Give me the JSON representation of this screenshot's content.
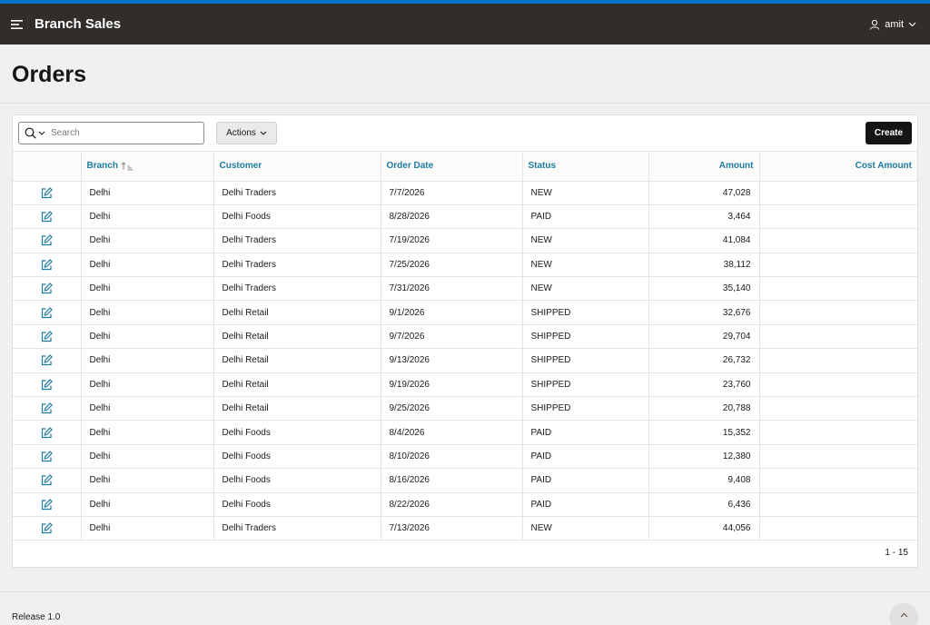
{
  "header": {
    "app_title": "Branch Sales",
    "user_name": "amit",
    "accent_color": "#0572ce",
    "bar_color": "#312d2a"
  },
  "page": {
    "title": "Orders"
  },
  "toolbar": {
    "search_placeholder": "Search",
    "actions_label": "Actions",
    "create_label": "Create"
  },
  "table": {
    "columns": [
      "Branch",
      "Customer",
      "Order Date",
      "Status",
      "Amount",
      "Cost Amount"
    ],
    "rows": [
      [
        "Delhi",
        "Delhi Traders",
        "7/7/2026",
        "NEW",
        "47,028",
        ""
      ],
      [
        "Delhi",
        "Delhi Foods",
        "8/28/2026",
        "PAID",
        "3,464",
        ""
      ],
      [
        "Delhi",
        "Delhi Traders",
        "7/19/2026",
        "NEW",
        "41,084",
        ""
      ],
      [
        "Delhi",
        "Delhi Traders",
        "7/25/2026",
        "NEW",
        "38,112",
        ""
      ],
      [
        "Delhi",
        "Delhi Traders",
        "7/31/2026",
        "NEW",
        "35,140",
        ""
      ],
      [
        "Delhi",
        "Delhi Retail",
        "9/1/2026",
        "SHIPPED",
        "32,676",
        ""
      ],
      [
        "Delhi",
        "Delhi Retail",
        "9/7/2026",
        "SHIPPED",
        "29,704",
        ""
      ],
      [
        "Delhi",
        "Delhi Retail",
        "9/13/2026",
        "SHIPPED",
        "26,732",
        ""
      ],
      [
        "Delhi",
        "Delhi Retail",
        "9/19/2026",
        "SHIPPED",
        "23,760",
        ""
      ],
      [
        "Delhi",
        "Delhi Retail",
        "9/25/2026",
        "SHIPPED",
        "20,788",
        ""
      ],
      [
        "Delhi",
        "Delhi Foods",
        "8/4/2026",
        "PAID",
        "15,352",
        ""
      ],
      [
        "Delhi",
        "Delhi Foods",
        "8/10/2026",
        "PAID",
        "12,380",
        ""
      ],
      [
        "Delhi",
        "Delhi Foods",
        "8/16/2026",
        "PAID",
        "9,408",
        ""
      ],
      [
        "Delhi",
        "Delhi Foods",
        "8/22/2026",
        "PAID",
        "6,436",
        ""
      ],
      [
        "Delhi",
        "Delhi Traders",
        "7/13/2026",
        "NEW",
        "44,056",
        ""
      ]
    ],
    "pagination": "1 - 15"
  },
  "footer": {
    "release": "Release 1.0"
  }
}
